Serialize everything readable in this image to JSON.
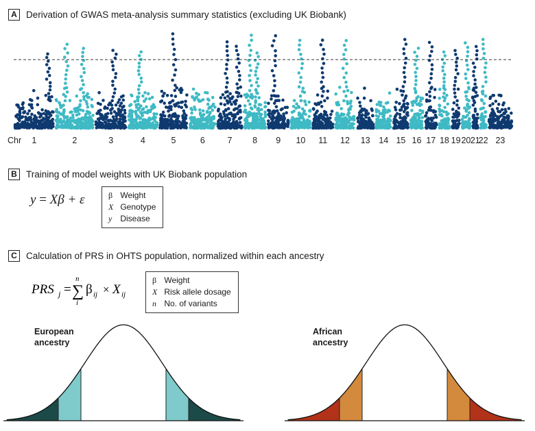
{
  "panels": {
    "a": {
      "letter": "A",
      "title": "Derivation of GWAS meta-analysis summary statistics (excluding UK Biobank)",
      "chr_label": "Chr",
      "chromosomes": [
        "1",
        "2",
        "3",
        "4",
        "5",
        "6",
        "7",
        "8",
        "9",
        "10",
        "11",
        "12",
        "13",
        "14",
        "15",
        "16",
        "17",
        "18",
        "19",
        "20",
        "21",
        "22",
        "23"
      ]
    },
    "b": {
      "letter": "B",
      "title": "Training of model weights with UK Biobank population",
      "equation": {
        "lhs": "y",
        "eq": " = ",
        "rhs": "Xβ + ε"
      },
      "legend": [
        {
          "symbol": "β",
          "label": "Weight"
        },
        {
          "symbol": "X",
          "label": "Genotype"
        },
        {
          "symbol": "y",
          "label": "Disease"
        }
      ]
    },
    "c": {
      "letter": "C",
      "title": "Calculation of PRS in OHTS population, normalized within each ancestry",
      "equation": {
        "lhs": "PRS",
        "lhs_sub": "j",
        "eq": "=",
        "sum": "∑",
        "sum_top": "n",
        "sum_bottom": "i",
        "beta": "β",
        "beta_sub": "ij",
        "times": "×",
        "x": "X",
        "x_sub": "ij"
      },
      "legend": [
        {
          "symbol": "β",
          "label": "Weight"
        },
        {
          "symbol": "X",
          "label": "Risk allele dosage"
        },
        {
          "symbol": "n",
          "label": "No. of variants"
        }
      ],
      "ancestries": [
        {
          "line1": "European",
          "line2": "ancestry",
          "inner_color": "#7fcaca",
          "outer_color": "#1c4a48"
        },
        {
          "line1": "African",
          "line2": "ancestry",
          "inner_color": "#d38a3c",
          "outer_color": "#b2321a"
        }
      ]
    }
  },
  "colors": {
    "dark": "#0f3a70",
    "light": "#3fbac4",
    "line": "#222222"
  }
}
